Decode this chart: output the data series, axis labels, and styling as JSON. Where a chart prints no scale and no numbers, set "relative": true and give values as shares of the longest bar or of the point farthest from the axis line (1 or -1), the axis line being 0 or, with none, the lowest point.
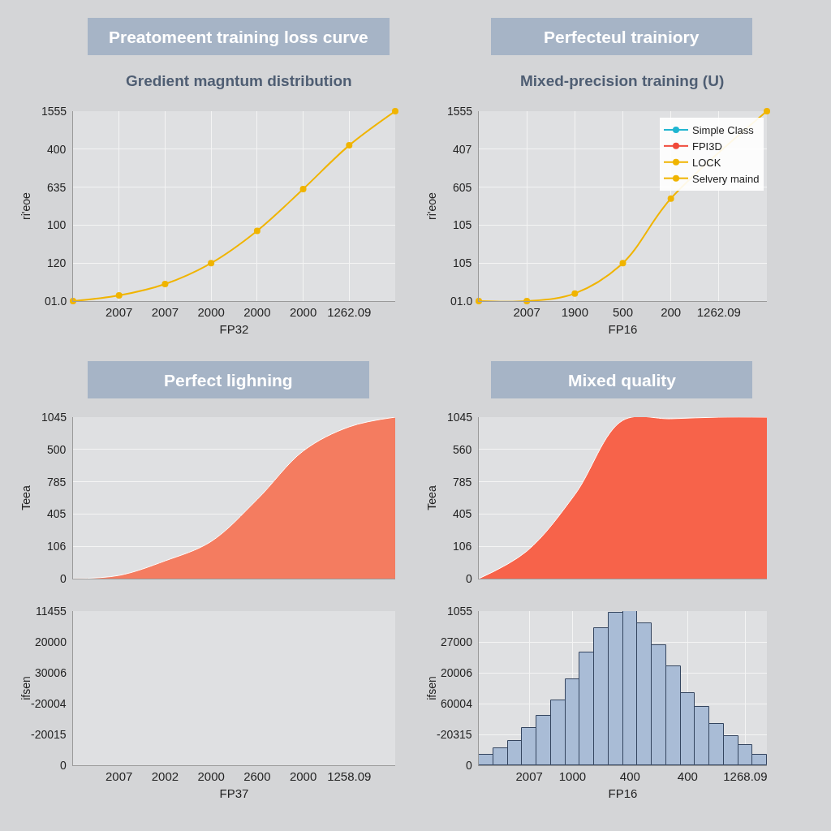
{
  "chart_data": [
    {
      "type": "line",
      "title": "Preatomeent training loss curve",
      "subtitle": "Gredient magntum distribution",
      "xlabel": "FP32",
      "ylabel": "ri'eoe",
      "grid": true,
      "marker": "circle",
      "relative": true,
      "annotations": [
        "01.0",
        "120",
        "100",
        "635",
        "400",
        "1555"
      ],
      "categories": [
        null,
        "2007",
        "2007",
        "2000",
        "2000",
        "2000",
        "1262.09",
        null
      ],
      "series": [
        {
          "color": "#f0b400",
          "values": [
            0,
            0.03,
            0.09,
            0.2,
            0.37,
            0.59,
            0.82,
            1.0
          ]
        }
      ]
    },
    {
      "type": "line",
      "title": "Perfecteul trainiory",
      "subtitle": "Mixed-precision training (U)",
      "xlabel": "FP16",
      "ylabel": "ri'eoe",
      "grid": true,
      "marker": "circle",
      "legend": "top right",
      "relative": true,
      "annotations": [
        "01.0",
        "105",
        "105",
        "605",
        "407",
        "1555"
      ],
      "categories": [
        null,
        "2007",
        "1900",
        "500",
        "200",
        "1262.09",
        null
      ],
      "series": [
        {
          "name": "Simple Class",
          "color": "#1fb5d0",
          "values": [
            null,
            null,
            null,
            null,
            null,
            null,
            null
          ]
        },
        {
          "name": "FPI3D",
          "color": "#f04a3a",
          "values": [
            null,
            null,
            null,
            null,
            null,
            null,
            null
          ]
        },
        {
          "name": "LOCK",
          "color": "#f0b400",
          "values": [
            0,
            0,
            0.04,
            0.2,
            0.54,
            null,
            1.0
          ]
        },
        {
          "name": "Selvery maind",
          "color": "#f0b400",
          "values": [
            null,
            null,
            null,
            null,
            null,
            null,
            null
          ]
        }
      ]
    },
    {
      "type": "area",
      "title": "Perfect lighning",
      "ylabel": "Teea",
      "grid": true,
      "tick_labels": "y",
      "relative": true,
      "annotations": [
        "0",
        "106",
        "405",
        "785",
        "500",
        "1045"
      ],
      "categories": [
        null,
        null,
        null,
        null,
        null,
        null,
        null,
        null
      ],
      "series": [
        {
          "color": "#f47c60",
          "values": [
            0,
            0.02,
            0.11,
            0.23,
            0.49,
            0.79,
            0.94,
            1.0
          ]
        }
      ]
    },
    {
      "type": "other",
      "xlabel": "FP37",
      "ylabel": "ifsen",
      "annotations": [
        "0",
        "-20015",
        "-20004",
        "30006",
        "20000",
        "11455"
      ],
      "categories": [
        null,
        "2007",
        "2002",
        "2000",
        "2600",
        "2000",
        "1258.09",
        null
      ]
    },
    {
      "type": "area",
      "title": "Mixed quality",
      "ylabel": "Teea",
      "grid": true,
      "tick_labels": "y",
      "relative": true,
      "annotations": [
        "0",
        "106",
        "405",
        "785",
        "560",
        "1045"
      ],
      "categories": [
        null,
        null,
        null,
        null,
        null,
        null,
        null
      ],
      "series": [
        {
          "color": "#f7634a",
          "values": [
            0,
            0.17,
            0.52,
            0.98,
            0.99,
            1.0,
            1.0
          ]
        }
      ]
    },
    {
      "type": "bar",
      "xlabel": "FP16",
      "ylabel": "ifsen",
      "grid": true,
      "color": "#a9bcd6",
      "relative": true,
      "annotations": [
        "0",
        "-20315",
        "60004",
        "20006",
        "27000",
        "1055"
      ],
      "categories": [
        null,
        null,
        null,
        "2007",
        null,
        null,
        "1000",
        null,
        null,
        null,
        "400",
        null,
        null,
        null,
        "400",
        null,
        null,
        null,
        "1268.09",
        null
      ],
      "values": [
        0.07,
        0.11,
        0.16,
        0.24,
        0.32,
        0.42,
        0.56,
        0.73,
        0.89,
        0.99,
        1.0,
        0.92,
        0.78,
        0.64,
        0.47,
        0.38,
        0.27,
        0.19,
        0.13,
        0.07
      ]
    }
  ]
}
